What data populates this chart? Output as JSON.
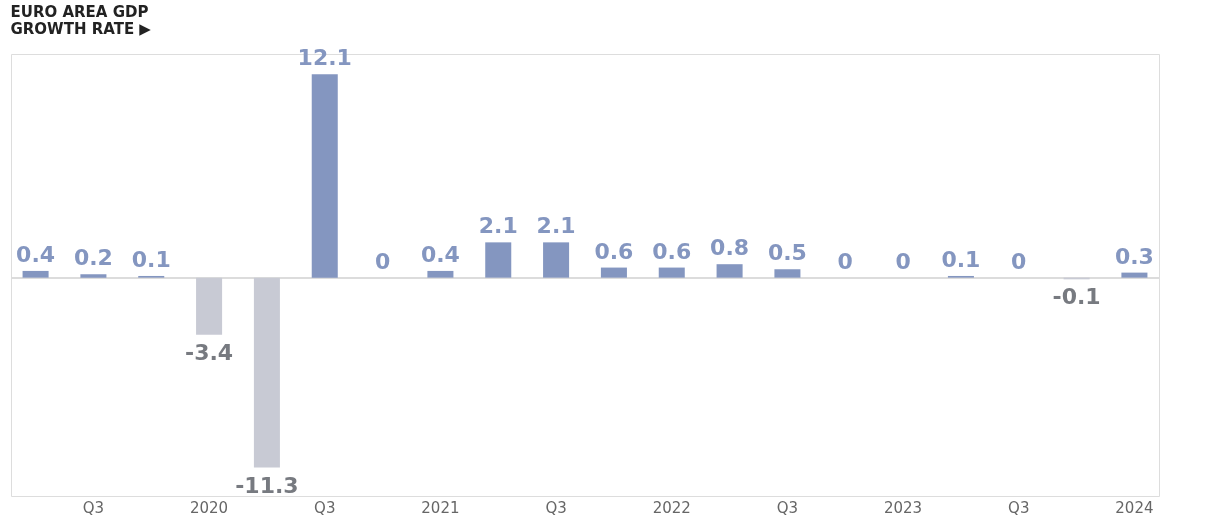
{
  "chart_data": {
    "type": "bar",
    "title": "EURO AREA GDP\nGROWTH RATE ▶",
    "categories": [
      null,
      "Q3",
      null,
      "2020",
      null,
      "Q3",
      null,
      "2021",
      null,
      "Q3",
      null,
      "2022",
      null,
      "Q3",
      null,
      "2023",
      null,
      "Q3",
      null,
      "2024"
    ],
    "values": [
      0.4,
      0.2,
      0.1,
      -3.4,
      -11.3,
      12.1,
      0,
      0.4,
      2.1,
      2.1,
      0.6,
      0.6,
      0.8,
      0.5,
      0,
      0,
      0.1,
      0,
      -0.1,
      0.3
    ],
    "colors": [
      "#8496c0",
      "#8496c0",
      "#8496c0",
      "#c8cad4",
      "#c8cad4",
      "#8496c0",
      "#8496c0",
      "#8496c0",
      "#8496c0",
      "#8496c0",
      "#8496c0",
      "#8496c0",
      "#8496c0",
      "#8496c0",
      "#8496c0",
      "#8496c0",
      "#8496c0",
      "#8496c0",
      "#c8cad4",
      "#8496c0"
    ],
    "data_labels": true
  }
}
